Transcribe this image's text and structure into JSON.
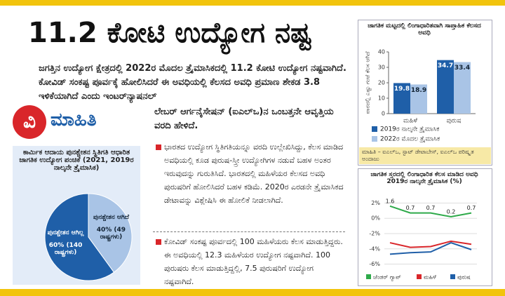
{
  "header": {
    "title": "11.2 ಕೋಟಿ ಉದ್ಯೋಗ ನಷ್ಟ"
  },
  "lead": [
    "ಜಗತ್ತಿನ ಉದ್ಯೋಗ ಕ್ಷೇತ್ರದಲ್ಲಿ 2022ರ ಮೊದಲ ತ್ರೈಮಾಸಿಕದಲ್ಲಿ 11.2 ಕೋಟಿ ಉದ್ಯೋಗ ನಷ್ಟವಾಗಿದೆ. ಕೋವಿಡ್ ಸಂಕಷ್ಟ ಪೂರ್ವಕ್ಕೆ ಹೋಲಿಸಿದರೆ ಈ ಅವಧಿಯಲ್ಲಿ ಕೆಲಸದ ಅವಧಿ ಪ್ರಮಾಣ ಶೇಕಡ 3.8 ಇಳಿಕೆಯಾಗಿದೆ ಎಂದು ಇಂಟರ್‌ನ್ಯಾಷನಲ್",
    "ಲೇಬರ್ ಆರ್ಗನೈಸೇಷನ್ (ಐಎಲ್‌ಒ)ನ ಒಂಬತ್ತನೇ ಆವೃತ್ತಿಯ ವರದಿ ಹೇಳಿದೆ."
  ],
  "logo": {
    "letter": "ವಿ",
    "text": "ಮಾಹಿತಿ"
  },
  "bullets": [
    "ಭಾರತದ ಉದ್ಯೋಗ ಸ್ಥಿತಿಗತಿಯನ್ನೂ ವರದಿ ಉಲ್ಲೇಖಿಸಿದ್ದು, ಕೆಲಸ ಮಾಡಿದ ಅವಧಿಯಲ್ಲಿ ಕೂಡ ಪುರುಷ-ಸ್ತ್ರೀ ಉದ್ಯೋಗಿಗಳ ನಡುವೆ ಬಹಳ ಅಂತರ ಇರುವುದನ್ನು ಗುರುತಿಸಿದೆ. ಭಾರತದಲ್ಲಿ ಮಹಿಳೆಯರ ಕೆಲಸದ ಅವಧಿ ಪುರುಷರಿಗೆ ಹೋಲಿಸಿದರೆ ಬಹಳ ಕಡಿಮೆ. 2020ರ ಎರಡನೇ ತ್ರೈಮಾಸಿಕದ ಡೇಟಾವನ್ನು ವಿಶ್ಲೇಷಿಸಿ ಈ ಹೋಲಿಕೆ ನೀಡಲಾಗಿದೆ.",
    "ಕೋವಿಡ್ ಸಂಕಷ್ಟ ಪೂರ್ವದಲ್ಲಿ 100 ಮಹಿಳೆಯರು ಕೆಲಸ ಮಾಡುತ್ತಿದ್ದರು. ಈ ಅವಧಿಯಲ್ಲಿ 12.3 ಮಹಿಳೆಯರ ಉದ್ಯೋಗ ನಷ್ಟವಾಗಿದೆ. 100 ಪುರುಷರು ಕೆಲಸ ಮಾಡುತ್ತಿದ್ದಲ್ಲಿ, 7.5 ಪುರುಷರಿಗೆ ಉದ್ಯೋಗ ನಷ್ಟವಾಗಿದೆ."
  ],
  "chart_data": [
    {
      "type": "pie",
      "title": "ಕಾರ್ಮಿಕ ಆದಾಯ ಪುನಶ್ಚೇತನ ಸ್ಥಿತಿಗತಿ ಆಧಾರಿತ ಜಾಗತಿಕ ಉದ್ಯೋಗ ಪಂಚಿಕೆ (2021, 2019ರ ನಾಲ್ಕನೇ ತ್ರೈಮಾಸಿಕ)",
      "categories": [
        "ಪುನಶ್ಚೇತನ ಆಗಿದೆ",
        "ಪುನಶ್ಚೇತನ ಆಗಿಲ್ಲ"
      ],
      "values": [
        40,
        60
      ],
      "value_labels": [
        "40% (49 ರಾಷ್ಟ್ರಗಳು)",
        "60% (140 ರಾಷ್ಟ್ರಗಳು)"
      ],
      "colors": [
        "#a9c4e6",
        "#1f5fa8"
      ]
    },
    {
      "type": "bar",
      "title": "ಜಾಗತಿಕ ಮಟ್ಟದಲ್ಲಿ ಲಿಂಗಾಧಾರಿತವಾಗಿ ಸಾಪ್ತಾಹಿಕ ಕೆಲಸದ ಅವಧಿ",
      "y_label": "ವಾರದಲ್ಲಿ ಎಷ್ಟು ಗಂಟೆ ಕೆಲಸ ಆಗಿದೆ",
      "categories": [
        "ಮಹಿಳೆ",
        "ಪುರುಷ"
      ],
      "series": [
        {
          "name": "2019ರ ನಾಲ್ಕನೇ ತ್ರೈಮಾಸಿಕ",
          "color": "#1f5fa8",
          "values": [
            19.8,
            34.7
          ]
        },
        {
          "name": "2022ರ ಮೊದಲ ತ್ರೈಮಾಸಿಕ",
          "color": "#a9c4e6",
          "values": [
            18.9,
            33.4
          ]
        }
      ],
      "ylim": [
        0,
        40
      ],
      "yticks": [
        0,
        10,
        20,
        30,
        40
      ],
      "source": "ಮಾಹಿತಿ – ಐಎಲ್‌ಒ, ಸ್ಟಾಟ್ ಡೇಟಾಬೇಸ್, ಐಎಲ್‌ಒ ಪರಿಷ್ಕೃತ ಅಂದಾಜು"
    },
    {
      "type": "line",
      "title": "ಜಾಗತಿಕ ಸ್ತರದಲ್ಲಿ ಲಿಂಗಾಧಾರಿತ ಕೆಲಸ ಮಾಡಿದ ಅವಧಿ 2019ರ ನಾಲ್ಕನೇ ತ್ರೈಮಾಸಿಕ (%)",
      "categories": [
        null,
        null,
        null,
        null,
        null
      ],
      "series": [
        {
          "name": "ಜೆಂಡರ್ ಗ್ಯಾಪ್",
          "color": "#2eaa4a",
          "values": [
            1.6,
            0.7,
            0.7,
            0.2,
            0.7
          ]
        },
        {
          "name": "ಮಹಿಳೆ",
          "color": "#d9262a",
          "values": [
            -3.2,
            -3.8,
            -3.7,
            -3.0,
            -3.4
          ]
        },
        {
          "name": "ಪುರುಷ",
          "color": "#1f5fa8",
          "values": [
            -4.7,
            -4.5,
            -4.4,
            -3.2,
            -4.1
          ]
        }
      ],
      "ylim": [
        -6.5,
        2.5
      ],
      "yticks": [
        {
          "value": 2,
          "label": "2%"
        },
        {
          "value": 0,
          "label": "0%"
        },
        {
          "value": -2,
          "label": "-2%"
        },
        {
          "value": -4,
          "label": "-4%"
        },
        {
          "value": -6,
          "label": "-6%"
        }
      ]
    }
  ]
}
